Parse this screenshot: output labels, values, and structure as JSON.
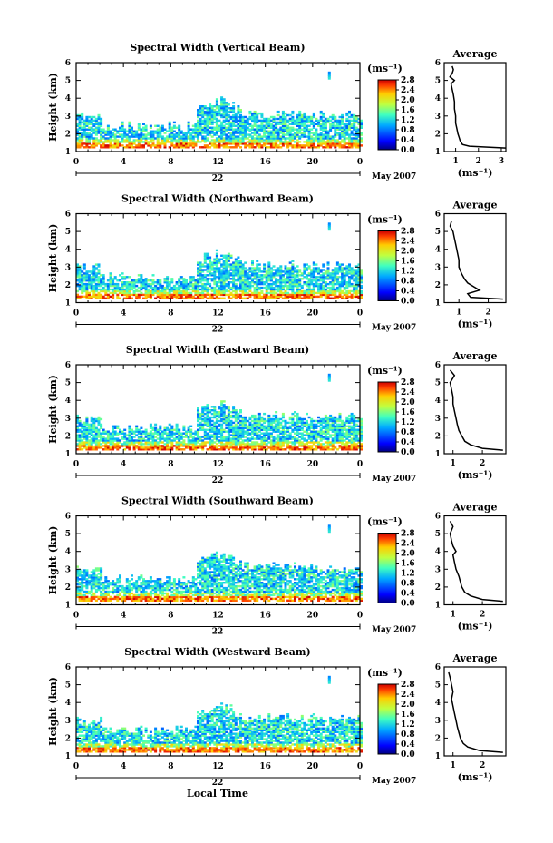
{
  "figure": {
    "date_label": "May 2007",
    "xlabel": "Local Time",
    "ylabel": "Height (km)",
    "colorbar_unit": "(ms⁻¹)",
    "profile_title": "Average",
    "profile_unit": "(ms⁻¹)",
    "day_label": "22"
  },
  "chart_data": [
    {
      "type": "heatmap",
      "title": "Spectral Width (Vertical Beam)",
      "xticks": [
        "0",
        "4",
        "8",
        "12",
        "16",
        "20",
        "0"
      ],
      "yticks": [
        "1",
        "2",
        "3",
        "4",
        "5",
        "6"
      ],
      "xlim": [
        0,
        24
      ],
      "ylim": [
        1,
        6
      ],
      "cbar_ticks": [
        "0.0",
        "0.4",
        "0.8",
        "1.2",
        "1.6",
        "2.0",
        "2.4",
        "2.8"
      ],
      "cbar_range": [
        0,
        2.8
      ],
      "profile": {
        "xticks": [
          "1",
          "2",
          "3"
        ],
        "xlim": [
          0.5,
          3.2
        ],
        "height": [
          1.2,
          1.3,
          1.4,
          1.6,
          1.8,
          2.0,
          2.3,
          2.6,
          3.0,
          3.4,
          3.8,
          4.2,
          4.5,
          4.8,
          5.0,
          5.2,
          5.4,
          5.6,
          5.8
        ],
        "width": [
          3.2,
          1.6,
          1.3,
          1.2,
          1.15,
          1.1,
          1.05,
          1.0,
          1.0,
          0.95,
          0.95,
          0.9,
          0.85,
          0.8,
          0.95,
          0.75,
          0.85,
          0.9,
          0.85
        ]
      }
    },
    {
      "type": "heatmap",
      "title": "Spectral Width (Northward Beam)",
      "xticks": [
        "0",
        "4",
        "8",
        "12",
        "16",
        "20",
        "0"
      ],
      "yticks": [
        "1",
        "2",
        "3",
        "4",
        "5",
        "6"
      ],
      "xlim": [
        0,
        24
      ],
      "ylim": [
        1,
        6
      ],
      "cbar_ticks": [
        "0.0",
        "0.4",
        "0.8",
        "1.2",
        "1.6",
        "2.0",
        "2.4",
        "2.8"
      ],
      "cbar_range": [
        0,
        2.8
      ],
      "profile": {
        "xticks": [
          "1",
          "2"
        ],
        "xlim": [
          0.5,
          2.6
        ],
        "height": [
          1.2,
          1.3,
          1.5,
          1.7,
          1.9,
          2.1,
          2.3,
          2.6,
          3.0,
          3.4,
          3.8,
          4.2,
          4.6,
          5.0,
          5.3,
          5.6
        ],
        "width": [
          2.5,
          1.4,
          1.3,
          1.7,
          1.5,
          1.3,
          1.2,
          1.1,
          1.0,
          1.0,
          0.95,
          0.9,
          0.85,
          0.8,
          0.7,
          0.75
        ]
      }
    },
    {
      "type": "heatmap",
      "title": "Spectral Width (Eastward Beam)",
      "xticks": [
        "0",
        "4",
        "8",
        "12",
        "16",
        "20",
        "0"
      ],
      "yticks": [
        "1",
        "2",
        "3",
        "4",
        "5",
        "6"
      ],
      "xlim": [
        0,
        24
      ],
      "ylim": [
        1,
        6
      ],
      "cbar_ticks": [
        "0.0",
        "0.4",
        "0.8",
        "1.2",
        "1.6",
        "2.0",
        "2.4",
        "2.8"
      ],
      "cbar_range": [
        0,
        2.8
      ],
      "profile": {
        "xticks": [
          "1",
          "2"
        ],
        "xlim": [
          0.7,
          2.8
        ],
        "height": [
          1.2,
          1.3,
          1.5,
          1.7,
          2.0,
          2.3,
          2.6,
          3.0,
          3.4,
          3.8,
          4.2,
          4.6,
          5.0,
          5.4,
          5.7
        ],
        "width": [
          2.7,
          2.0,
          1.6,
          1.4,
          1.3,
          1.2,
          1.15,
          1.1,
          1.05,
          1.0,
          1.0,
          0.95,
          0.9,
          1.05,
          0.9
        ]
      }
    },
    {
      "type": "heatmap",
      "title": "Spectral Width (Southward Beam)",
      "xticks": [
        "0",
        "4",
        "8",
        "12",
        "16",
        "20",
        "0"
      ],
      "yticks": [
        "1",
        "2",
        "3",
        "4",
        "5",
        "6"
      ],
      "xlim": [
        0,
        24
      ],
      "ylim": [
        1,
        6
      ],
      "cbar_ticks": [
        "0.0",
        "0.4",
        "0.8",
        "1.2",
        "1.6",
        "2.0",
        "2.4",
        "2.8"
      ],
      "cbar_range": [
        0,
        2.8
      ],
      "profile": {
        "xticks": [
          "1",
          "2"
        ],
        "xlim": [
          0.7,
          2.8
        ],
        "height": [
          1.2,
          1.3,
          1.5,
          1.7,
          2.0,
          2.3,
          2.6,
          3.0,
          3.4,
          3.8,
          4.0,
          4.3,
          4.6,
          5.0,
          5.4,
          5.7
        ],
        "width": [
          2.7,
          2.0,
          1.6,
          1.4,
          1.3,
          1.25,
          1.2,
          1.1,
          1.05,
          1.0,
          1.1,
          1.0,
          0.95,
          0.9,
          1.0,
          0.9
        ]
      }
    },
    {
      "type": "heatmap",
      "title": "Spectral Width (Westward Beam)",
      "xticks": [
        "0",
        "4",
        "8",
        "12",
        "16",
        "20",
        "0"
      ],
      "yticks": [
        "1",
        "2",
        "3",
        "4",
        "5",
        "6"
      ],
      "xlim": [
        0,
        24
      ],
      "ylim": [
        1,
        6
      ],
      "cbar_ticks": [
        "0.0",
        "0.4",
        "0.8",
        "1.2",
        "1.6",
        "2.0",
        "2.4",
        "2.8"
      ],
      "cbar_range": [
        0,
        2.8
      ],
      "profile": {
        "xticks": [
          "1",
          "2"
        ],
        "xlim": [
          0.7,
          2.8
        ],
        "height": [
          1.2,
          1.3,
          1.5,
          1.7,
          2.0,
          2.3,
          2.6,
          3.0,
          3.4,
          3.8,
          4.2,
          4.6,
          5.0,
          5.4,
          5.7
        ],
        "width": [
          2.7,
          1.9,
          1.5,
          1.35,
          1.25,
          1.2,
          1.15,
          1.1,
          1.05,
          1.0,
          0.95,
          1.0,
          0.95,
          0.9,
          0.85
        ]
      }
    }
  ]
}
